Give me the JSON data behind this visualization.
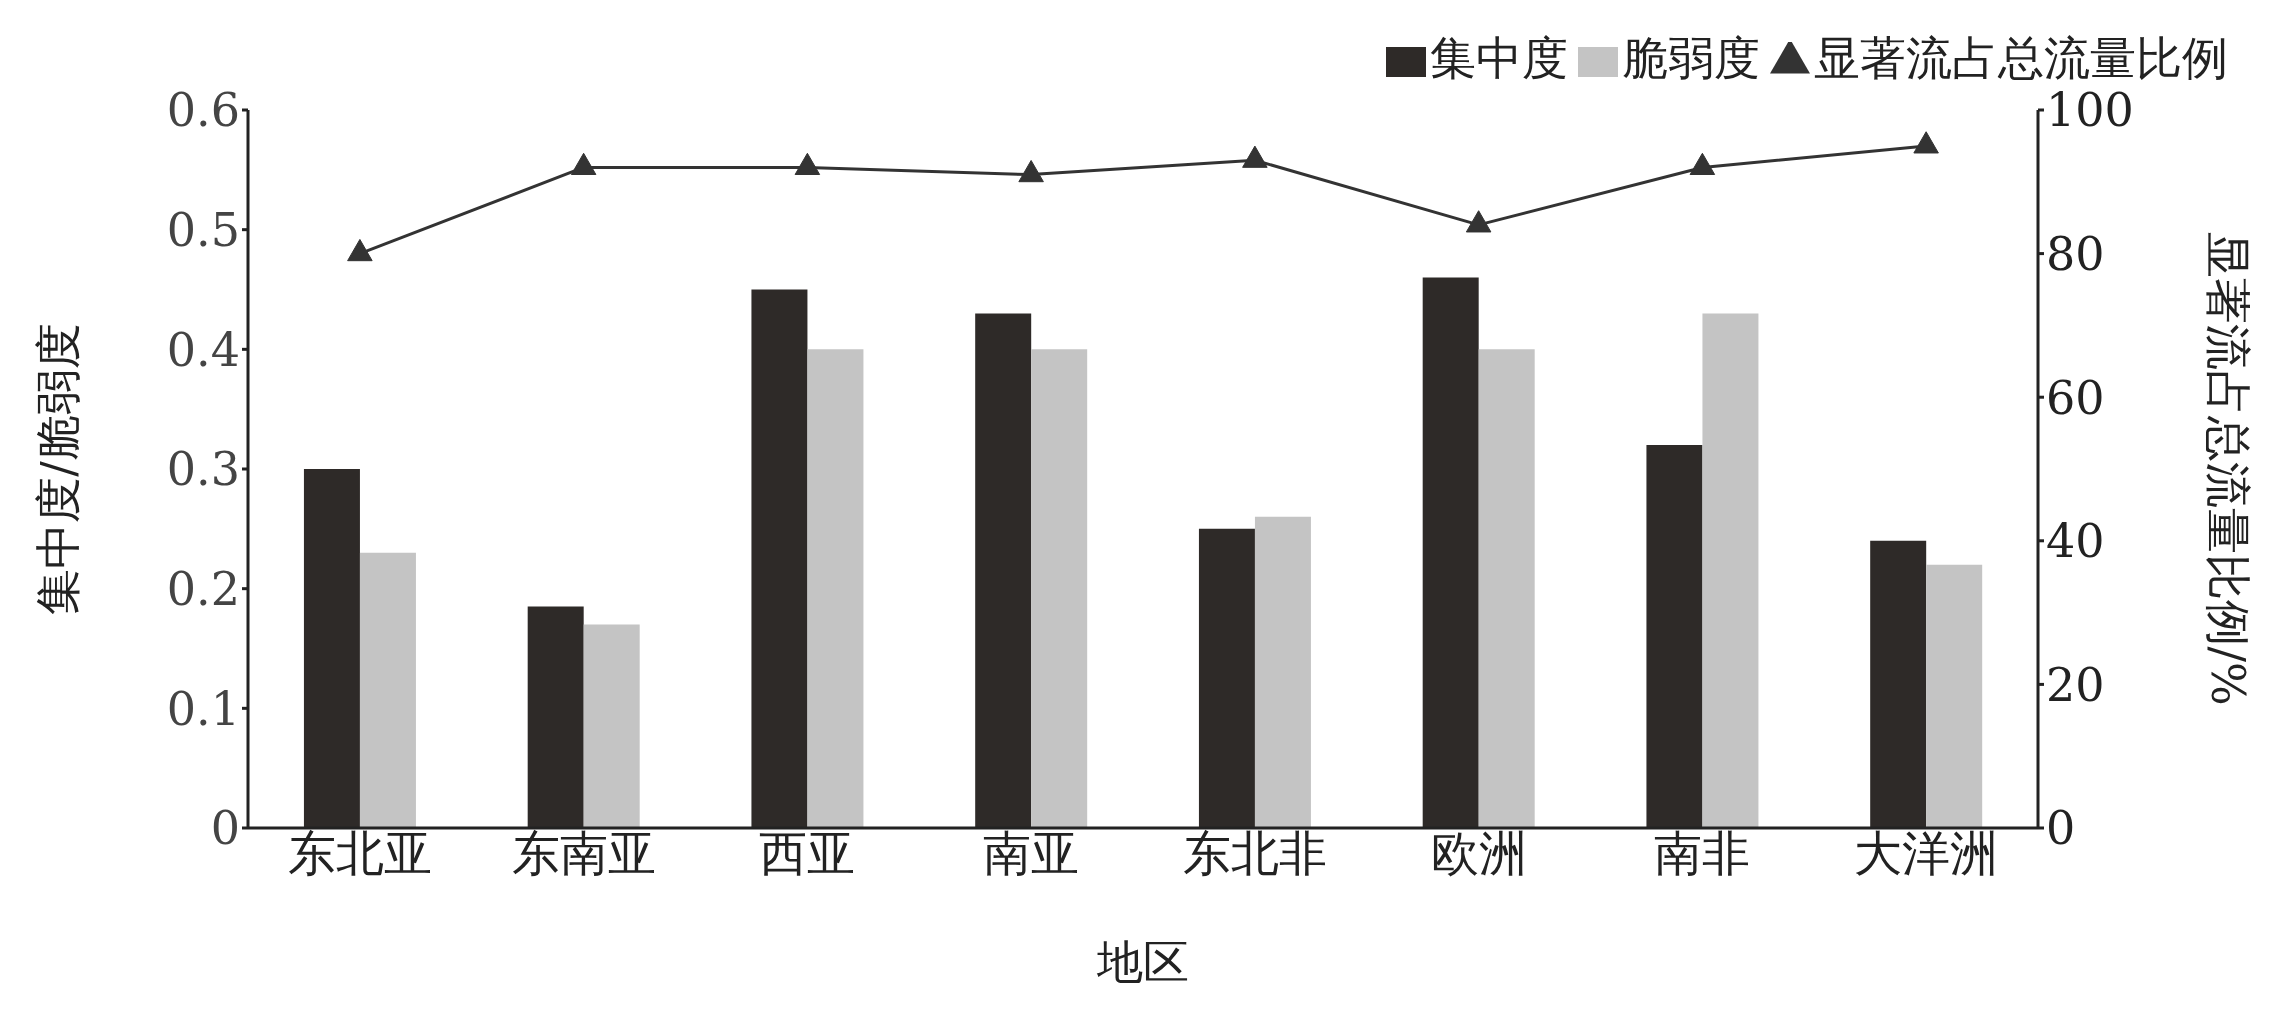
{
  "chart_data": {
    "type": "bar",
    "xlabel": "地区",
    "ylabel": "集中度/脆弱度",
    "y2label": "显著流占总流量比例/%",
    "categories": [
      "东北亚",
      "东南亚",
      "西亚",
      "南亚",
      "东北非",
      "欧洲",
      "南非",
      "大洋洲"
    ],
    "series": [
      {
        "name": "集中度",
        "color": "#2e2a28",
        "values": [
          0.3,
          0.185,
          0.45,
          0.43,
          0.25,
          0.46,
          0.32,
          0.24
        ]
      },
      {
        "name": "脆弱度",
        "color": "#c4c4c4",
        "values": [
          0.23,
          0.17,
          0.4,
          0.4,
          0.26,
          0.4,
          0.43,
          0.22
        ]
      },
      {
        "name": "显著流占总流量比例",
        "type": "line",
        "axis": "y2",
        "color": "#333333",
        "marker": "triangle",
        "values": [
          80,
          92,
          92,
          91,
          93,
          84,
          92,
          95
        ]
      }
    ],
    "ylim": [
      0,
      0.6
    ],
    "yticks": [
      0,
      0.1,
      0.2,
      0.3,
      0.4,
      0.5,
      0.6
    ],
    "y2lim": [
      0,
      100
    ],
    "y2ticks": [
      0,
      20,
      40,
      60,
      80,
      100
    ],
    "grid": false,
    "legend": "top right"
  }
}
